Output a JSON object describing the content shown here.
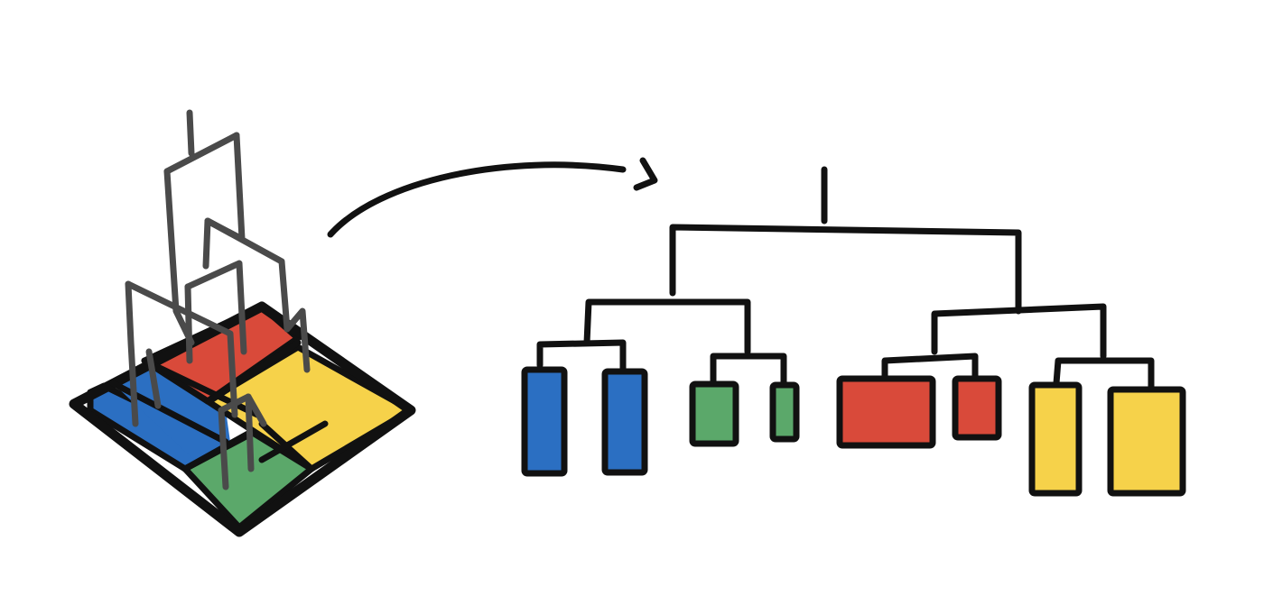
{
  "colors": {
    "ink": "#111111",
    "tree_3d": "#4a4a4a",
    "blue": "#2b6fc2",
    "green": "#5ba86a",
    "red": "#d94a3a",
    "yellow": "#f6d24a",
    "background": "#ffffff"
  },
  "map": {
    "regions": [
      {
        "name": "map-region-blue",
        "color": "blue"
      },
      {
        "name": "map-region-red",
        "color": "red"
      },
      {
        "name": "map-region-yellow",
        "color": "yellow"
      },
      {
        "name": "map-region-green",
        "color": "green"
      }
    ]
  },
  "dendrogram": {
    "leaves": [
      {
        "name": "leaf-blue-1",
        "color": "blue"
      },
      {
        "name": "leaf-blue-2",
        "color": "blue"
      },
      {
        "name": "leaf-green-1",
        "color": "green"
      },
      {
        "name": "leaf-green-2",
        "color": "green"
      },
      {
        "name": "leaf-red-1",
        "color": "red"
      },
      {
        "name": "leaf-red-2",
        "color": "red"
      },
      {
        "name": "leaf-yellow-1",
        "color": "yellow"
      },
      {
        "name": "leaf-yellow-2",
        "color": "yellow"
      }
    ]
  },
  "arrow": {
    "icon": "curved-arrow-right-icon"
  }
}
